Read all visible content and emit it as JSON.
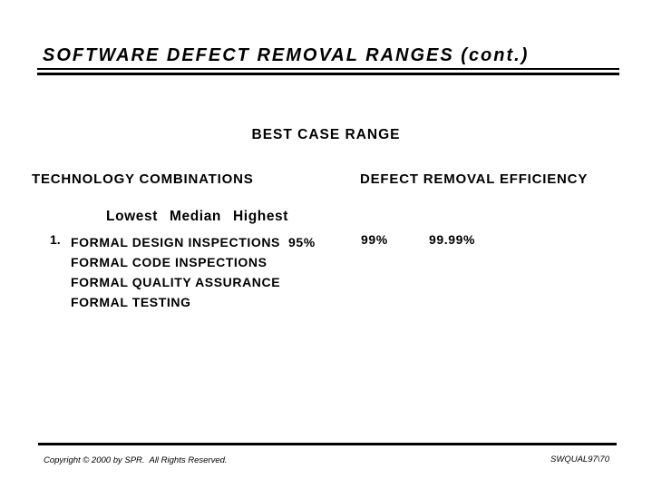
{
  "slide": {
    "title": "SOFTWARE DEFECT REMOVAL RANGES (cont.)",
    "section_heading": "BEST CASE RANGE",
    "columns": {
      "left_header": "TECHNOLOGY COMBINATIONS",
      "right_header": "DEFECT REMOVAL EFFICIENCY"
    },
    "range_headers": [
      "Lowest",
      "Median",
      "Highest"
    ],
    "rows": [
      {
        "number": "1.",
        "technologies": [
          "FORMAL DESIGN INSPECTIONS",
          "FORMAL CODE INSPECTIONS",
          "FORMAL QUALITY ASSURANCE",
          "FORMAL TESTING"
        ],
        "lowest": "95%",
        "median": "99%",
        "highest": "99.99%"
      }
    ],
    "footer": {
      "copyright": "Copyright © 2000 by SPR.  All Rights Reserved.",
      "document_id": "SWQUAL97\\70"
    },
    "colors": {
      "text": "#000000",
      "background": "#ffffff"
    }
  }
}
